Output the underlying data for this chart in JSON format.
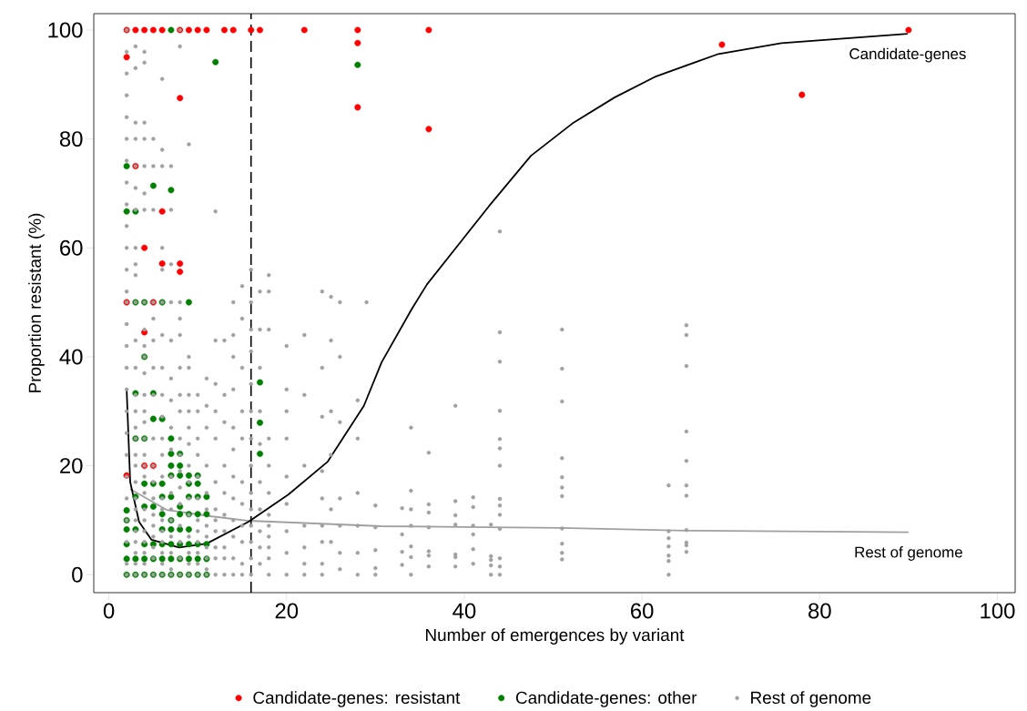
{
  "chart_data": {
    "type": "scatter",
    "xlabel": "Number of emergences by variant",
    "ylabel": "Proportion resistant (%)",
    "xlim": [
      -1.7,
      102
    ],
    "ylim": [
      -3.3,
      103
    ],
    "xticks": [
      0,
      20,
      40,
      60,
      80,
      100
    ],
    "yticks": [
      0,
      20,
      40,
      60,
      80,
      100
    ],
    "grid": false,
    "legend": "bottom",
    "ref_lines": [
      {
        "axis": "x",
        "value": 16,
        "color": "#000000",
        "line_style": "dashed"
      }
    ],
    "series": [
      {
        "name": "Candidate-genes: resistant",
        "marker": "circle",
        "color": "#ff0000",
        "x": [
          2,
          3,
          4,
          5,
          6,
          8,
          9,
          10,
          11,
          13,
          14,
          16,
          17,
          22,
          28,
          36,
          90,
          2,
          28,
          28,
          36,
          69,
          78,
          8,
          3,
          6,
          4,
          6,
          8,
          8,
          2,
          5,
          4,
          4,
          5,
          2
        ],
        "values": [
          100,
          100,
          100,
          100,
          100,
          100,
          100,
          100,
          100,
          100,
          100,
          100,
          100,
          100,
          100,
          100,
          100,
          95,
          97.6,
          85.8,
          81.8,
          97.3,
          88.1,
          87.5,
          75,
          66.7,
          60,
          57.1,
          57.1,
          55.6,
          50,
          50,
          44.5,
          20,
          20,
          18.2
        ]
      },
      {
        "name": "Candidate-genes: other",
        "marker": "circle",
        "color": "#008000",
        "x": [
          2,
          3,
          4,
          5,
          6,
          7,
          8,
          9,
          10,
          11,
          2,
          3,
          4,
          5,
          6,
          7,
          8,
          9,
          10,
          11,
          2,
          4,
          5,
          6,
          7,
          8,
          9,
          10,
          11,
          2,
          3,
          6,
          7,
          8,
          9,
          2,
          7,
          6,
          8,
          9,
          10,
          11,
          2,
          3,
          4,
          5,
          6,
          7,
          8,
          9,
          10,
          11,
          4,
          5,
          6,
          9,
          10,
          7,
          8,
          9,
          10,
          7,
          8,
          7,
          8,
          3,
          4,
          7,
          5,
          6,
          3,
          5,
          4,
          3,
          4,
          6,
          9,
          2,
          3,
          7,
          5,
          2,
          12,
          28,
          7,
          17,
          17,
          17
        ],
        "values": [
          0,
          0,
          0,
          0,
          0,
          0,
          0,
          0,
          0,
          0,
          2.9,
          2.9,
          2.9,
          2.9,
          2.9,
          2.9,
          2.9,
          2.9,
          2.9,
          2.9,
          5.6,
          5.6,
          5.6,
          5.6,
          5.6,
          5.6,
          5.6,
          5.6,
          5.6,
          8.3,
          8.3,
          8.3,
          8.3,
          8.3,
          8.3,
          10,
          10,
          11.1,
          11.1,
          11.1,
          11.1,
          11.1,
          11.8,
          14.3,
          12.5,
          12.5,
          14.3,
          14.3,
          12.5,
          14.3,
          14.3,
          14.3,
          16.7,
          16.7,
          16.7,
          16.7,
          16.7,
          18.2,
          18.2,
          18.2,
          18.2,
          20,
          20,
          22.2,
          22.2,
          25,
          25,
          25,
          28.6,
          28.6,
          33.3,
          33.3,
          40,
          50,
          50,
          50,
          50,
          66.7,
          66.7,
          70.6,
          71.4,
          75,
          94.1,
          93.6,
          100,
          35.3,
          27.9,
          22.2
        ]
      },
      {
        "name": "Rest of genome",
        "marker": "circle",
        "color": "#a0a0a0",
        "x": [
          2,
          2,
          2,
          2,
          2,
          2,
          2,
          2,
          2,
          2,
          2,
          2,
          2,
          2,
          2,
          2,
          2,
          2,
          2,
          2,
          2,
          2,
          2,
          2,
          2,
          2,
          2,
          3,
          3,
          3,
          3,
          3,
          3,
          3,
          3,
          3,
          3,
          3,
          3,
          3,
          3,
          3,
          3,
          3,
          3,
          3,
          3,
          3,
          3,
          3,
          3,
          3,
          3,
          3,
          3,
          4,
          4,
          4,
          4,
          4,
          4,
          4,
          4,
          4,
          4,
          4,
          4,
          4,
          4,
          4,
          4,
          4,
          4,
          4,
          4,
          4,
          4,
          4,
          4,
          4,
          4,
          4,
          5,
          5,
          5,
          5,
          5,
          5,
          5,
          5,
          5,
          5,
          5,
          5,
          5,
          5,
          5,
          5,
          5,
          5,
          6,
          6,
          6,
          6,
          6,
          6,
          6,
          6,
          6,
          6,
          6,
          6,
          6,
          6,
          6,
          6,
          6,
          6,
          6,
          6,
          6,
          7,
          7,
          7,
          7,
          7,
          7,
          7,
          7,
          7,
          7,
          7,
          7,
          7,
          7,
          7,
          7,
          7,
          8,
          8,
          8,
          8,
          8,
          8,
          8,
          8,
          8,
          8,
          8,
          8,
          8,
          8,
          8,
          8,
          8,
          9,
          9,
          9,
          9,
          9,
          9,
          9,
          9,
          9,
          9,
          9,
          9,
          9,
          9,
          9,
          10,
          10,
          10,
          10,
          10,
          10,
          10,
          10,
          10,
          10,
          10,
          10,
          11,
          11,
          11,
          11,
          11,
          11,
          11,
          11,
          11,
          11,
          11,
          11,
          12,
          12,
          12,
          12,
          12,
          12,
          12,
          12,
          12,
          12,
          12,
          12,
          13,
          13,
          13,
          13,
          13,
          13,
          13,
          13,
          13,
          13,
          14,
          14,
          14,
          14,
          14,
          14,
          14,
          14,
          14,
          14,
          14,
          14,
          15,
          15,
          15,
          15,
          15,
          15,
          15,
          15,
          15,
          15,
          15,
          16,
          16,
          16,
          16,
          16,
          16,
          16,
          16,
          16,
          16,
          16,
          16,
          16,
          16,
          17,
          17,
          17,
          17,
          17,
          17,
          17,
          17,
          17,
          17,
          18,
          18,
          18,
          18,
          18,
          18,
          18,
          18,
          18,
          18,
          18,
          18,
          20,
          20,
          20,
          20,
          20,
          20,
          20,
          20,
          20,
          22,
          22,
          22,
          22,
          22,
          22,
          22,
          24,
          24,
          24,
          24,
          24,
          24,
          24,
          24,
          24,
          25,
          25,
          25,
          25,
          25,
          25,
          26,
          26,
          26,
          26,
          26,
          26,
          26,
          28,
          28,
          28,
          28,
          28,
          28,
          29,
          30,
          30,
          30,
          30,
          30,
          33,
          33,
          33,
          33,
          34,
          34,
          34,
          34,
          34,
          34,
          34,
          36,
          36,
          36,
          36,
          36,
          36,
          36,
          39,
          39,
          39,
          39,
          39,
          39,
          39,
          41,
          41,
          41,
          41,
          41,
          41,
          43,
          43,
          43,
          43,
          43,
          44,
          44,
          44,
          44,
          44,
          44,
          44,
          44,
          44,
          44,
          44,
          44,
          44,
          44,
          51,
          51,
          51,
          51,
          51,
          51,
          51,
          51,
          51,
          51,
          51,
          63,
          63,
          63,
          63,
          63,
          63,
          63,
          65,
          65,
          65,
          65,
          65,
          65,
          65,
          65,
          65,
          65,
          65
        ],
        "values": [
          100,
          96,
          92,
          88,
          84,
          80,
          76,
          72,
          68,
          64,
          60,
          56,
          52,
          50,
          46,
          42,
          38,
          34,
          30,
          26,
          22,
          18,
          14,
          10,
          6,
          2,
          0,
          97,
          93,
          83,
          80,
          75,
          71,
          67,
          60,
          57,
          55,
          50,
          43,
          38,
          33,
          30,
          27,
          25,
          22,
          20,
          17,
          14,
          12,
          10,
          8,
          6,
          4,
          2,
          0,
          96,
          94,
          83,
          80,
          75,
          70,
          67,
          50,
          45,
          42,
          40,
          37,
          33,
          30,
          28,
          25,
          22,
          20,
          18,
          15,
          12,
          10,
          8,
          6,
          4,
          2,
          0,
          80,
          75,
          67,
          50,
          47,
          43,
          38,
          33,
          25,
          20,
          17,
          14,
          11,
          9,
          7,
          5,
          3,
          0,
          91,
          78,
          75,
          60,
          56,
          50,
          44,
          38,
          33,
          29,
          25,
          22,
          18,
          14,
          12,
          10,
          8,
          6,
          4,
          2,
          0,
          75,
          67,
          57,
          50,
          43,
          36,
          32,
          27,
          23,
          18,
          15,
          12,
          10,
          7,
          4,
          1,
          0,
          100,
          97,
          50,
          47,
          44,
          38,
          33,
          30,
          25,
          22,
          19,
          16,
          13,
          9,
          6,
          3,
          0,
          79,
          40,
          38,
          33,
          30,
          27,
          24,
          20,
          17,
          14,
          11,
          7,
          4,
          2,
          0,
          33,
          30,
          25,
          22,
          18,
          14,
          10,
          8,
          6,
          4,
          2,
          0,
          36,
          31,
          27,
          20,
          15,
          12,
          9,
          7,
          5,
          3,
          1,
          0,
          66.7,
          43,
          35,
          30,
          25,
          17,
          12,
          10,
          8,
          5,
          3,
          0,
          43,
          33,
          28,
          20,
          15,
          11,
          8,
          5,
          3,
          0,
          50,
          44,
          40,
          34,
          27,
          23,
          18,
          14,
          10,
          7,
          3,
          0,
          53,
          47,
          38,
          30,
          25,
          17,
          13,
          9,
          6,
          2,
          0,
          56,
          50,
          45,
          41,
          35,
          30,
          25,
          20,
          15,
          12,
          9,
          6,
          3,
          0,
          52,
          45,
          38,
          30,
          24,
          17,
          12,
          8,
          5,
          2,
          55,
          52,
          45,
          25,
          20,
          15,
          11,
          9,
          7,
          5,
          3,
          0,
          42,
          34,
          30,
          25,
          18,
          13,
          8,
          4,
          0,
          44,
          33,
          20,
          9,
          5,
          2,
          0,
          52,
          38,
          29,
          19,
          14,
          9,
          6,
          2,
          0,
          51,
          43,
          30,
          22,
          12,
          6,
          50,
          40,
          28,
          14,
          9,
          4,
          1,
          32,
          25,
          15,
          9,
          4,
          0,
          50,
          12.7,
          8.7,
          4.5,
          1.2,
          0,
          12.2,
          7.4,
          4.2,
          1.8,
          27,
          15.4,
          12,
          9,
          5.2,
          3.2,
          0,
          22.4,
          12.9,
          11.4,
          8.7,
          4.3,
          3.5,
          1.5,
          31,
          13.5,
          10.9,
          9.2,
          3.7,
          3.2,
          1.5,
          14.2,
          12.4,
          9,
          7.4,
          4.7,
          2,
          9.2,
          3.4,
          2.7,
          1.7,
          0,
          63,
          44.5,
          39.1,
          30.1,
          24.9,
          23.2,
          20,
          13.9,
          12.7,
          11,
          8.4,
          3,
          1.5,
          0,
          45,
          37.8,
          31.8,
          21.4,
          17.9,
          16,
          14.4,
          8.5,
          5.7,
          4,
          2.8,
          16.4,
          8,
          6.7,
          5.2,
          3.5,
          2.5,
          0,
          45.8,
          44,
          38.3,
          26.3,
          20.9,
          16.4,
          14.5,
          8.2,
          5.9,
          5.4,
          4.2
        ]
      },
      {
        "name": "Rest of genome",
        "type": "line",
        "marker": "none",
        "color": "#a0a0a0",
        "x": [
          2.4,
          6.5,
          11.6,
          15.7,
          30.7,
          50.8,
          64.9,
          90
        ],
        "values": [
          15.7,
          11.9,
          10.7,
          9.9,
          8.9,
          8.6,
          8.1,
          7.8
        ]
      },
      {
        "name": "Candidate-genes",
        "type": "line",
        "marker": "none",
        "color": "#000000",
        "x": [
          2,
          2.4,
          3.4,
          4.8,
          7.9,
          11,
          15.7,
          20.2,
          24.6,
          28.7,
          30.7,
          34.1,
          35.8,
          42.8,
          47.5,
          52.3,
          56.9,
          61.6,
          68.6,
          75.7,
          89.9
        ],
        "values": [
          34,
          17,
          9.7,
          6.4,
          5,
          5.7,
          9.7,
          14.7,
          20.7,
          31,
          39,
          48.8,
          53.3,
          67.7,
          76.9,
          83,
          87.6,
          91.5,
          95.6,
          97.6,
          99.3
        ]
      }
    ]
  }
}
